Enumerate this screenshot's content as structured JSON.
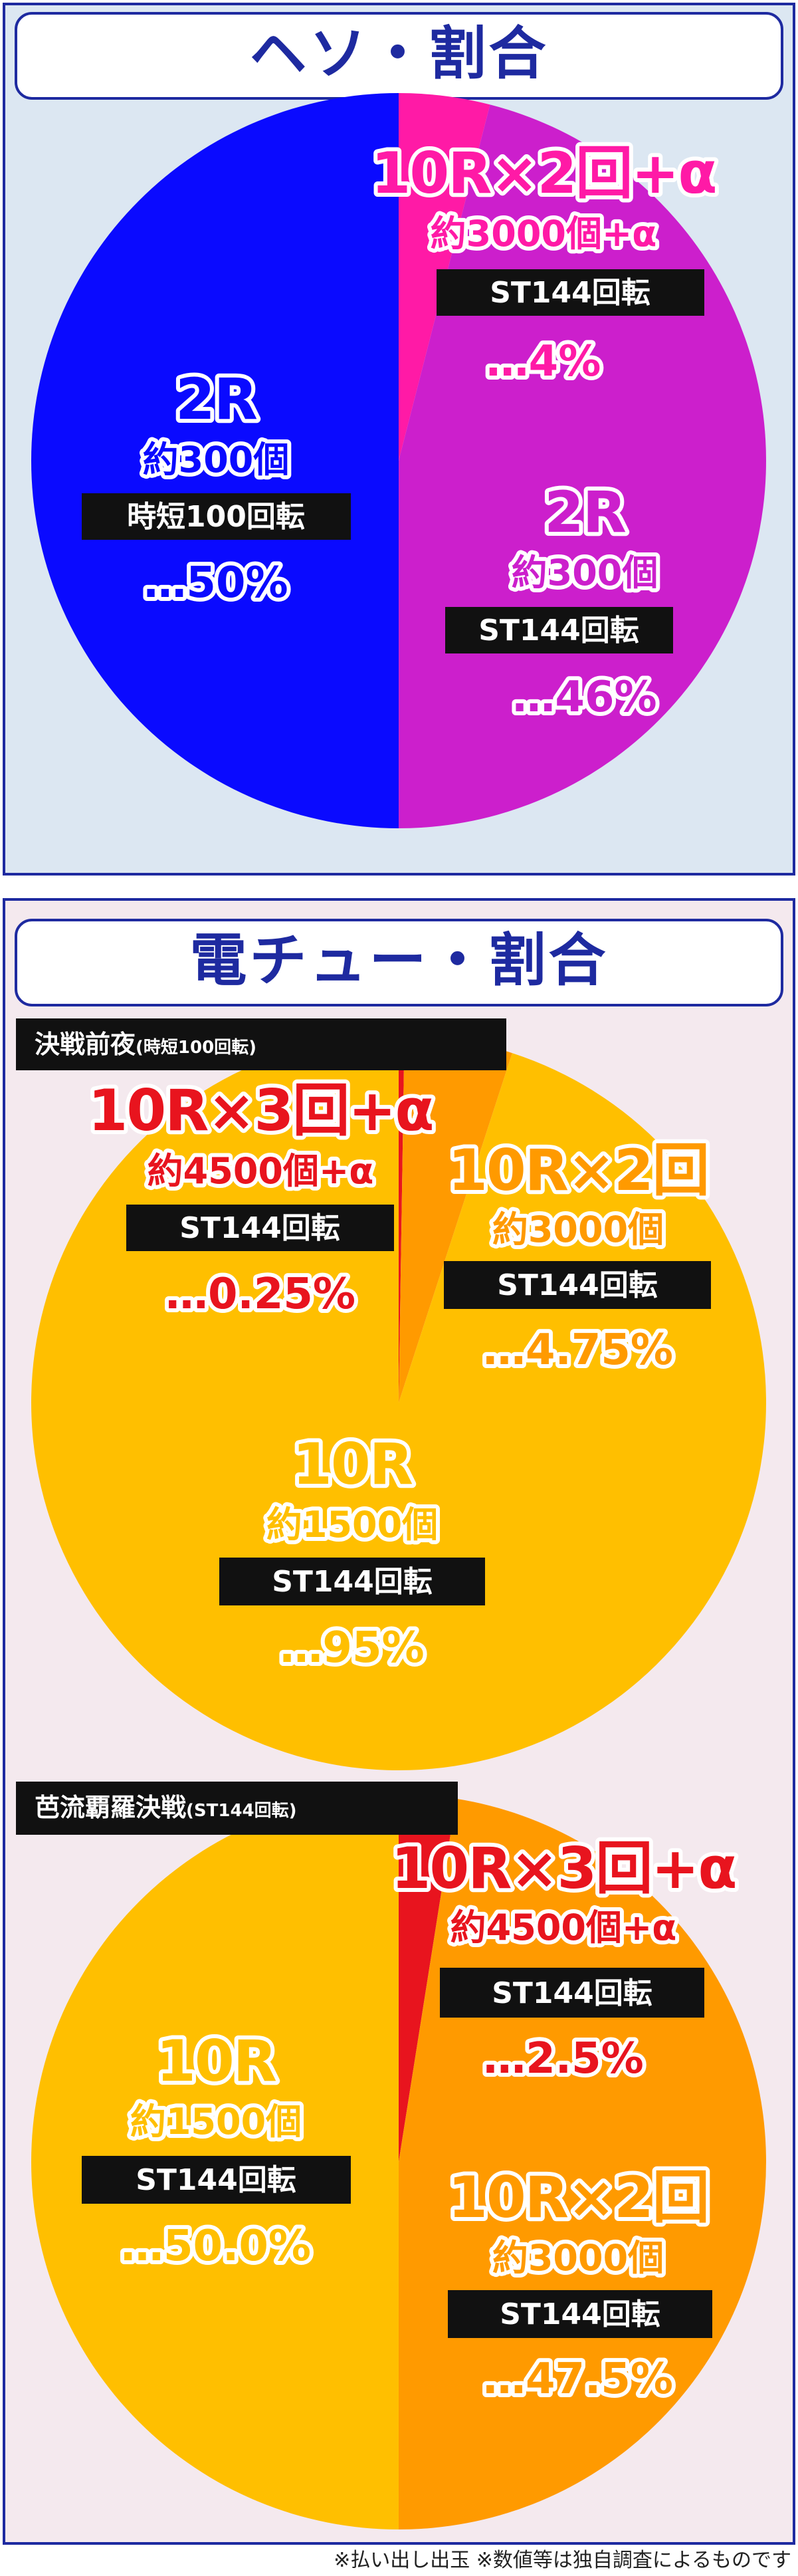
{
  "footnote": "※払い出し出玉 ※数値等は独自調査によるものです",
  "colors": {
    "frame": "#1e2aa0",
    "blue": "#0a0aff",
    "magenta": "#cc1fcc",
    "pink": "#ff1aa6",
    "yellow": "#ffbf00",
    "orange": "#ff9a00",
    "red": "#e8141e"
  },
  "chart_data": [
    {
      "type": "pie",
      "title": "ヘソ・割合",
      "series": [
        {
          "slices": [
            {
              "label": "10R×2回+α",
              "payout": "約3000個+α",
              "st": "ST144回転",
              "percent_label": "…4%",
              "value": 4
            },
            {
              "label": "2R",
              "payout": "約300個",
              "st": "ST144回転",
              "percent_label": "…46%",
              "value": 46
            },
            {
              "label": "2R",
              "payout": "約300個",
              "st": "時短100回転",
              "percent_label": "…50%",
              "value": 50
            }
          ]
        }
      ]
    },
    {
      "type": "pie",
      "title": "電チュー・割合",
      "series": [
        {
          "name": "決戦前夜",
          "name_note": "(時短100回転)",
          "slices": [
            {
              "label": "10R×3回+α",
              "payout": "約4500個+α",
              "st": "ST144回転",
              "percent_label": "…0.25%",
              "value": 0.25
            },
            {
              "label": "10R×2回",
              "payout": "約3000個",
              "st": "ST144回転",
              "percent_label": "…4.75%",
              "value": 4.75
            },
            {
              "label": "10R",
              "payout": "約1500個",
              "st": "ST144回転",
              "percent_label": "…95%",
              "value": 95
            }
          ]
        },
        {
          "name": "芭流覇羅決戦",
          "name_note": "(ST144回転)",
          "slices": [
            {
              "label": "10R×3回+α",
              "payout": "約4500個+α",
              "st": "ST144回転",
              "percent_label": "…2.5%",
              "value": 2.5
            },
            {
              "label": "10R×2回",
              "payout": "約3000個",
              "st": "ST144回転",
              "percent_label": "…47.5%",
              "value": 47.5
            },
            {
              "label": "10R",
              "payout": "約1500個",
              "st": "ST144回転",
              "percent_label": "…50.0%",
              "value": 50.0
            }
          ]
        }
      ]
    }
  ]
}
